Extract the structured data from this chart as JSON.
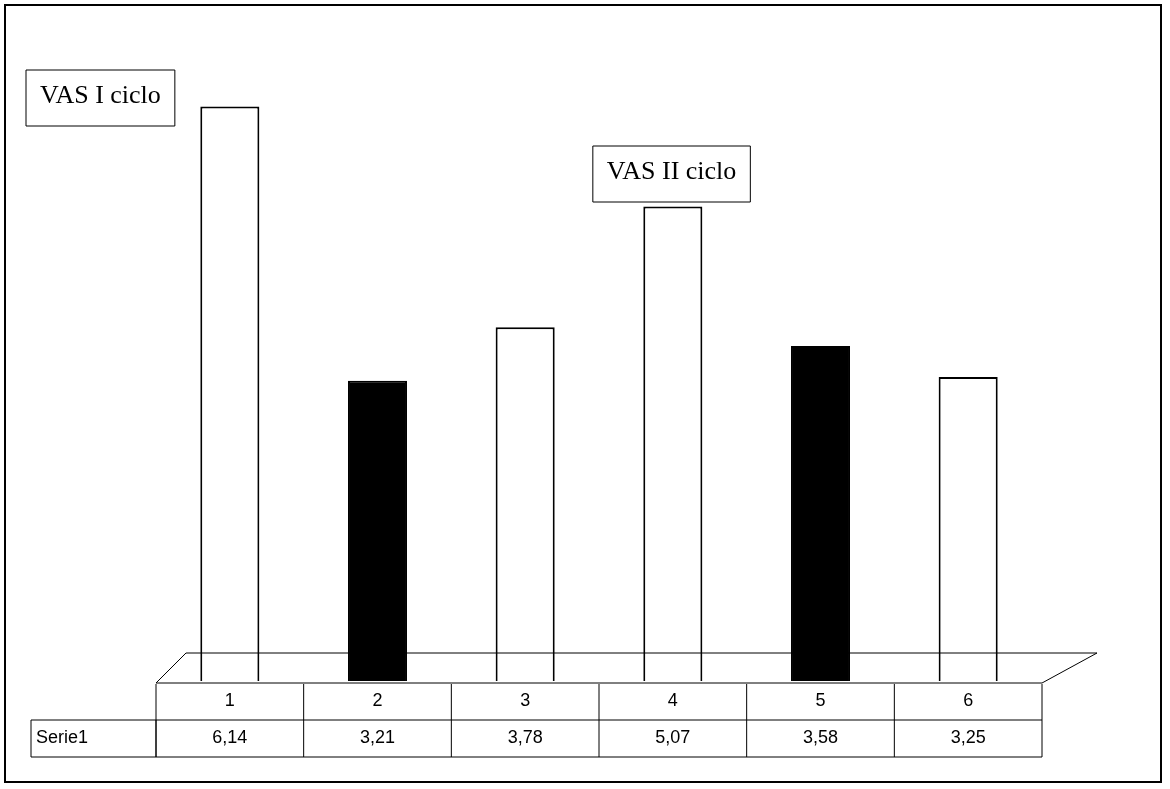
{
  "chart_data": {
    "type": "bar",
    "categories": [
      "1",
      "2",
      "3",
      "4",
      "5",
      "6"
    ],
    "series": [
      {
        "name": "Serie1",
        "colors": [
          "#ffffff",
          "#000000",
          "#ffffff",
          "#ffffff",
          "#000000",
          "#ffffff"
        ],
        "values": [
          6.14,
          3.21,
          3.78,
          5.07,
          3.58,
          3.25
        ],
        "value_labels": [
          "6,14",
          "3,21",
          "3,78",
          "5,07",
          "3,58",
          "3,25"
        ]
      }
    ],
    "annotations": [
      "VAS I ciclo",
      "VAS II ciclo"
    ],
    "legend": false,
    "grid": false
  }
}
